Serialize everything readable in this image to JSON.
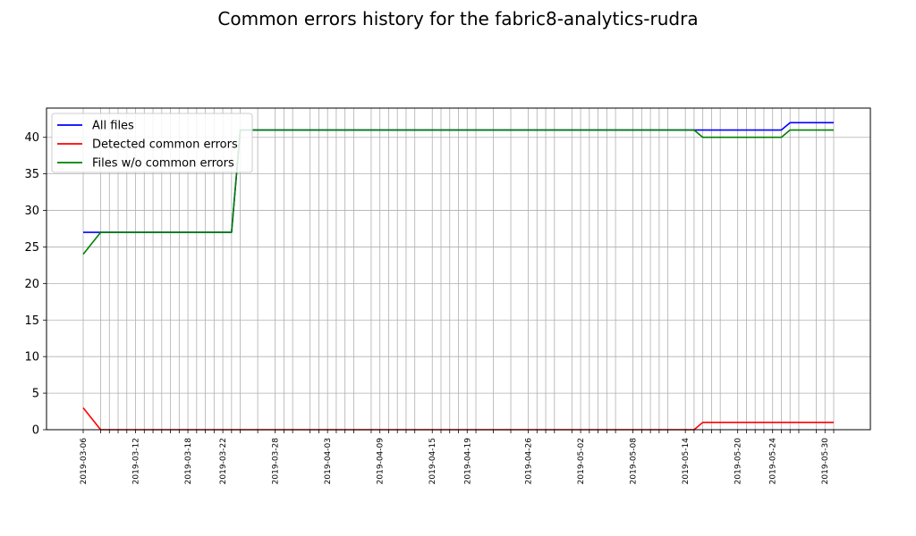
{
  "chart_data": {
    "type": "line",
    "title": "Common errors history for the fabric8-analytics-rudra",
    "xlabel": "",
    "ylabel": "",
    "ylim": [
      0,
      44
    ],
    "yticks": [
      0,
      5,
      10,
      15,
      20,
      25,
      30,
      35,
      40
    ],
    "grid": true,
    "legend_position": "top-left",
    "x": [
      "2019-03-06",
      "2019-03-08",
      "2019-03-09",
      "2019-03-10",
      "2019-03-11",
      "2019-03-12",
      "2019-03-13",
      "2019-03-14",
      "2019-03-15",
      "2019-03-16",
      "2019-03-17",
      "2019-03-18",
      "2019-03-19",
      "2019-03-20",
      "2019-03-21",
      "2019-03-22",
      "2019-03-23",
      "2019-03-24",
      "2019-03-26",
      "2019-03-28",
      "2019-03-29",
      "2019-03-30",
      "2019-04-01",
      "2019-04-02",
      "2019-04-03",
      "2019-04-04",
      "2019-04-05",
      "2019-04-06",
      "2019-04-08",
      "2019-04-09",
      "2019-04-10",
      "2019-04-11",
      "2019-04-12",
      "2019-04-13",
      "2019-04-15",
      "2019-04-16",
      "2019-04-17",
      "2019-04-18",
      "2019-04-19",
      "2019-04-20",
      "2019-04-22",
      "2019-04-24",
      "2019-04-26",
      "2019-04-27",
      "2019-04-28",
      "2019-04-29",
      "2019-05-01",
      "2019-05-02",
      "2019-05-03",
      "2019-05-04",
      "2019-05-05",
      "2019-05-06",
      "2019-05-08",
      "2019-05-09",
      "2019-05-10",
      "2019-05-11",
      "2019-05-12",
      "2019-05-14",
      "2019-05-15",
      "2019-05-16",
      "2019-05-17",
      "2019-05-18",
      "2019-05-20",
      "2019-05-21",
      "2019-05-22",
      "2019-05-23",
      "2019-05-24",
      "2019-05-25",
      "2019-05-26",
      "2019-05-27",
      "2019-05-29",
      "2019-05-30",
      "2019-05-31"
    ],
    "xtick_labels": [
      "2019-03-06",
      "2019-03-12",
      "2019-03-18",
      "2019-03-22",
      "2019-03-28",
      "2019-04-03",
      "2019-04-09",
      "2019-04-15",
      "2019-04-19",
      "2019-04-26",
      "2019-05-02",
      "2019-05-08",
      "2019-05-14",
      "2019-05-20",
      "2019-05-24",
      "2019-05-30"
    ],
    "series": [
      {
        "name": "All files",
        "color": "#0000ff",
        "values": [
          27,
          27,
          27,
          27,
          27,
          27,
          27,
          27,
          27,
          27,
          27,
          27,
          27,
          27,
          27,
          27,
          27,
          41,
          41,
          41,
          41,
          41,
          41,
          41,
          41,
          41,
          41,
          41,
          41,
          41,
          41,
          41,
          41,
          41,
          41,
          41,
          41,
          41,
          41,
          41,
          41,
          41,
          41,
          41,
          41,
          41,
          41,
          41,
          41,
          41,
          41,
          41,
          41,
          41,
          41,
          41,
          41,
          41,
          41,
          41,
          41,
          41,
          41,
          41,
          41,
          41,
          41,
          41,
          42,
          42,
          42,
          42,
          42
        ]
      },
      {
        "name": "Detected common errors",
        "color": "#ff0000",
        "values": [
          3,
          0,
          0,
          0,
          0,
          0,
          0,
          0,
          0,
          0,
          0,
          0,
          0,
          0,
          0,
          0,
          0,
          0,
          0,
          0,
          0,
          0,
          0,
          0,
          0,
          0,
          0,
          0,
          0,
          0,
          0,
          0,
          0,
          0,
          0,
          0,
          0,
          0,
          0,
          0,
          0,
          0,
          0,
          0,
          0,
          0,
          0,
          0,
          0,
          0,
          0,
          0,
          0,
          0,
          0,
          0,
          0,
          0,
          0,
          1,
          1,
          1,
          1,
          1,
          1,
          1,
          1,
          1,
          1,
          1,
          1,
          1,
          1
        ]
      },
      {
        "name": "Files w/o common errors",
        "color": "#008000",
        "values": [
          24,
          27,
          27,
          27,
          27,
          27,
          27,
          27,
          27,
          27,
          27,
          27,
          27,
          27,
          27,
          27,
          27,
          41,
          41,
          41,
          41,
          41,
          41,
          41,
          41,
          41,
          41,
          41,
          41,
          41,
          41,
          41,
          41,
          41,
          41,
          41,
          41,
          41,
          41,
          41,
          41,
          41,
          41,
          41,
          41,
          41,
          41,
          41,
          41,
          41,
          41,
          41,
          41,
          41,
          41,
          41,
          41,
          41,
          41,
          40,
          40,
          40,
          40,
          40,
          40,
          40,
          40,
          40,
          41,
          41,
          41,
          41,
          41
        ]
      }
    ]
  }
}
